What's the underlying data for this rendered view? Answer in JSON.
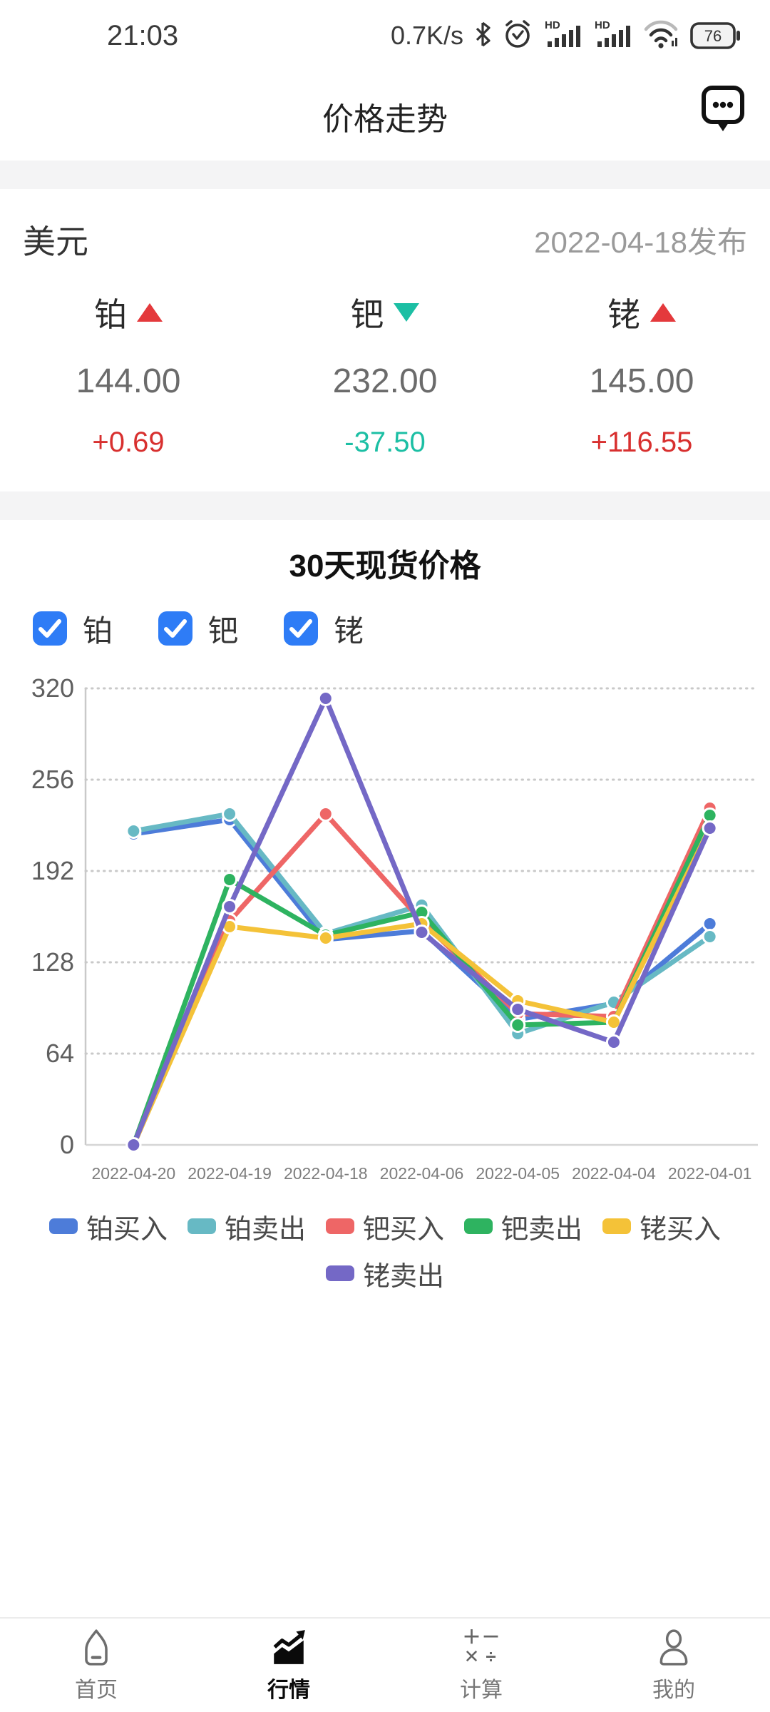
{
  "status_bar": {
    "time": "21:03",
    "network_speed": "0.7K/s",
    "battery_level": "76"
  },
  "header": {
    "title": "价格走势"
  },
  "quote": {
    "currency": "美元",
    "publish_date": "2022-04-18发布",
    "metals": [
      {
        "name": "铂",
        "direction": "up",
        "price": "144.00",
        "change": "+0.69"
      },
      {
        "name": "钯",
        "direction": "down",
        "price": "232.00",
        "change": "-37.50"
      },
      {
        "name": "铑",
        "direction": "up",
        "price": "145.00",
        "change": "+116.55"
      }
    ],
    "up_color": "#e4393c",
    "down_color": "#1cbfa4"
  },
  "chart_section": {
    "title": "30天现货价格",
    "checkboxes": [
      {
        "label": "铂",
        "checked": true
      },
      {
        "label": "钯",
        "checked": true
      },
      {
        "label": "铑",
        "checked": true
      }
    ]
  },
  "chart_data": {
    "type": "line",
    "title": "30天现货价格",
    "x": [
      "2022-04-20",
      "2022-04-19",
      "2022-04-18",
      "2022-04-06",
      "2022-04-05",
      "2022-04-04",
      "2022-04-01"
    ],
    "series": [
      {
        "name": "铂买入",
        "color": "#4d7cd9",
        "values": [
          218,
          228,
          144,
          150,
          88,
          99,
          155
        ]
      },
      {
        "name": "铂卖出",
        "color": "#67b9c4",
        "values": [
          220,
          232,
          148,
          168,
          78,
          100,
          146
        ]
      },
      {
        "name": "钯买入",
        "color": "#ee6666",
        "values": [
          0,
          157,
          232,
          157,
          92,
          90,
          236
        ]
      },
      {
        "name": "钯卖出",
        "color": "#2eb360",
        "values": [
          0,
          186,
          147,
          163,
          84,
          86,
          231
        ]
      },
      {
        "name": "铑买入",
        "color": "#f4c238",
        "values": [
          0,
          153,
          145,
          155,
          101,
          86,
          222
        ]
      },
      {
        "name": "铑卖出",
        "color": "#7468c6",
        "values": [
          0,
          167,
          313,
          149,
          95,
          72,
          222
        ]
      }
    ],
    "ylim": [
      0,
      320
    ],
    "yticks": [
      0,
      64,
      128,
      192,
      256,
      320
    ],
    "grid": "dotted horizontal gridlines",
    "legend_position": "bottom"
  },
  "bottom_nav": {
    "items": [
      {
        "label": "首页",
        "active": false
      },
      {
        "label": "行情",
        "active": true
      },
      {
        "label": "计算",
        "active": false
      },
      {
        "label": "我的",
        "active": false
      }
    ]
  }
}
